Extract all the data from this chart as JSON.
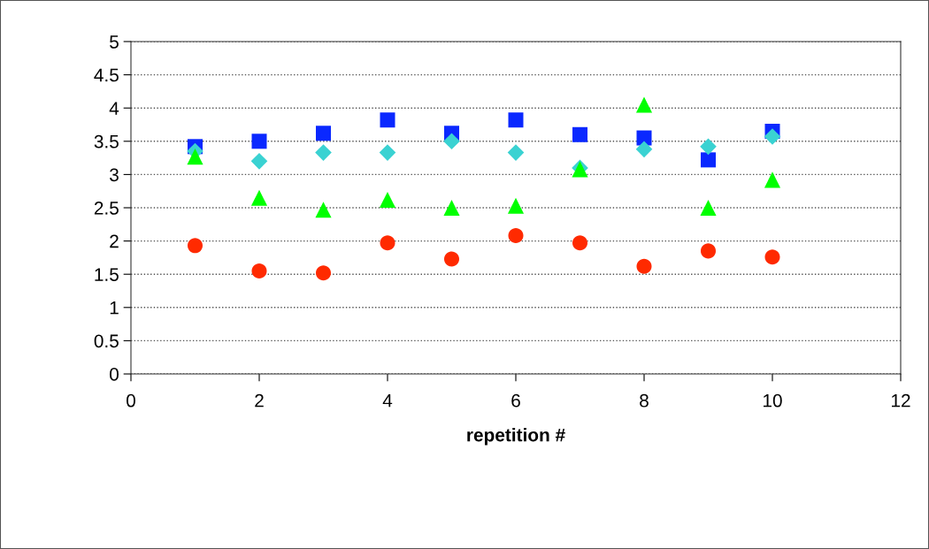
{
  "chart_data": {
    "type": "scatter",
    "xlabel": "repetition #",
    "x": [
      1,
      2,
      3,
      4,
      5,
      6,
      7,
      8,
      9,
      10
    ],
    "series": [
      {
        "color": "#0a28ff",
        "marker": "square",
        "values": [
          3.42,
          3.5,
          3.62,
          3.82,
          3.62,
          3.82,
          3.6,
          3.55,
          3.22,
          3.65
        ]
      },
      {
        "color": "#3ad2d2",
        "marker": "diamond",
        "values": [
          3.35,
          3.2,
          3.33,
          3.33,
          3.5,
          3.33,
          3.1,
          3.38,
          3.42,
          3.57
        ]
      },
      {
        "color": "#00ff00",
        "marker": "triangle",
        "values": [
          3.27,
          2.65,
          2.47,
          2.62,
          2.5,
          2.53,
          3.08,
          4.05,
          2.5,
          2.92
        ]
      },
      {
        "color": "#ff2a00",
        "marker": "circle",
        "values": [
          1.93,
          1.55,
          1.52,
          1.97,
          1.73,
          2.08,
          1.97,
          1.62,
          1.85,
          1.76
        ]
      }
    ],
    "xlim": [
      0,
      12
    ],
    "xticks": [
      0,
      2,
      4,
      6,
      8,
      10,
      12
    ],
    "ylim": [
      0,
      5
    ],
    "yticks": [
      0,
      0.5,
      1,
      1.5,
      2,
      2.5,
      3,
      3.5,
      4,
      4.5,
      5
    ],
    "grid": "y",
    "line_style": "dotted"
  }
}
